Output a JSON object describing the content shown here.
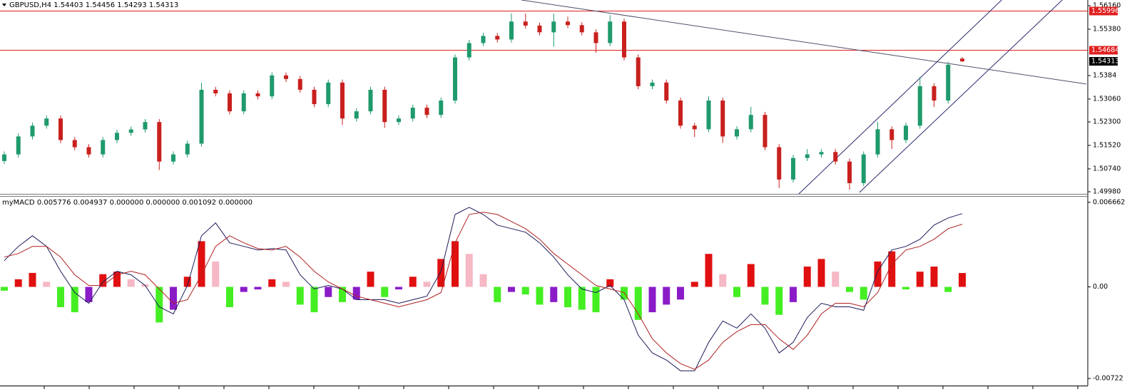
{
  "chart_data": [
    {
      "type": "candlestick",
      "header": "GBPUSD,H4  1.54403 1.54456 1.54293 1.54313",
      "open": [
        1.51,
        1.51221,
        1.51818,
        1.52175,
        1.52414,
        1.51698,
        1.5146,
        1.51221,
        1.51698,
        1.51937,
        1.5205,
        1.52295,
        1.50983,
        1.51221,
        1.51579,
        1.53368,
        1.53249,
        1.52652,
        1.53249,
        1.5315,
        1.53845,
        1.53726,
        1.53368,
        1.52891,
        1.53607,
        1.52414,
        1.52652,
        1.53368,
        1.52295,
        1.52414,
        1.52772,
        1.52533,
        1.5301,
        1.54442,
        1.54919,
        1.55157,
        1.55038,
        1.55634,
        1.555,
        1.55277,
        1.55634,
        1.55515,
        1.55277,
        1.54919,
        1.55634,
        1.54442,
        1.53487,
        1.53607,
        1.5301,
        1.52175,
        1.52056,
        1.5301,
        1.51818,
        1.52056,
        1.52533,
        1.5146,
        1.50386,
        1.51102,
        1.51221,
        1.513,
        1.50983,
        1.50267,
        1.51221,
        1.52056,
        1.51698,
        1.52175,
        1.53487,
        1.5301,
        1.54403
      ],
      "high": [
        1.51321,
        1.51918,
        1.52275,
        1.52514,
        1.52514,
        1.51798,
        1.5156,
        1.51798,
        1.52037,
        1.5215,
        1.52395,
        1.52395,
        1.51321,
        1.51679,
        1.536,
        1.53468,
        1.53349,
        1.53349,
        1.53349,
        1.5395,
        1.53945,
        1.53826,
        1.53468,
        1.53707,
        1.53707,
        1.52752,
        1.53468,
        1.53468,
        1.52514,
        1.52872,
        1.52872,
        1.5311,
        1.54542,
        1.55019,
        1.55257,
        1.55257,
        1.559,
        1.559,
        1.556,
        1.559,
        1.558,
        1.55615,
        1.55377,
        1.5585,
        1.55734,
        1.54542,
        1.53707,
        1.53707,
        1.5311,
        1.52275,
        1.5315,
        1.5311,
        1.52156,
        1.528,
        1.52633,
        1.5156,
        1.51202,
        1.514,
        1.514,
        1.514,
        1.51083,
        1.51321,
        1.523,
        1.52156,
        1.52275,
        1.538,
        1.53587,
        1.543,
        1.54456
      ],
      "low": [
        1.509,
        1.51121,
        1.51718,
        1.52075,
        1.51598,
        1.5136,
        1.51121,
        1.51121,
        1.51598,
        1.51837,
        1.5195,
        1.507,
        1.50883,
        1.51121,
        1.51479,
        1.53149,
        1.52552,
        1.52552,
        1.5305,
        1.5305,
        1.53626,
        1.53268,
        1.52791,
        1.52791,
        1.522,
        1.52314,
        1.52552,
        1.521,
        1.52195,
        1.52314,
        1.52433,
        1.52433,
        1.5291,
        1.54342,
        1.54819,
        1.54938,
        1.54938,
        1.554,
        1.55177,
        1.548,
        1.55415,
        1.55177,
        1.546,
        1.54819,
        1.54342,
        1.53387,
        1.53387,
        1.5291,
        1.52075,
        1.518,
        1.51956,
        1.516,
        1.51718,
        1.51956,
        1.5136,
        1.501,
        1.50286,
        1.51002,
        1.51121,
        1.50883,
        1.5005,
        1.50167,
        1.51121,
        1.514,
        1.51598,
        1.52075,
        1.528,
        1.5291,
        1.54293
      ],
      "close": [
        1.51221,
        1.51818,
        1.52175,
        1.52414,
        1.51698,
        1.5146,
        1.51221,
        1.51698,
        1.51937,
        1.5205,
        1.52295,
        1.50983,
        1.51221,
        1.51579,
        1.53368,
        1.53249,
        1.52652,
        1.53249,
        1.5315,
        1.53845,
        1.53726,
        1.53368,
        1.52891,
        1.53607,
        1.52414,
        1.52652,
        1.53368,
        1.52295,
        1.52414,
        1.52772,
        1.52533,
        1.5301,
        1.54442,
        1.54919,
        1.55157,
        1.55038,
        1.55634,
        1.555,
        1.55277,
        1.55634,
        1.55515,
        1.55277,
        1.54919,
        1.55634,
        1.54442,
        1.53487,
        1.53607,
        1.5301,
        1.52175,
        1.52056,
        1.5301,
        1.51818,
        1.52056,
        1.52533,
        1.5146,
        1.50386,
        1.51102,
        1.51221,
        1.513,
        1.50983,
        1.50267,
        1.51221,
        1.52056,
        1.51698,
        1.52175,
        1.53487,
        1.5301,
        1.542,
        1.54313
      ],
      "up_color": "#1f9a6c",
      "down_color": "#c8201e",
      "ylim": [
        1.4991,
        1.5635
      ],
      "yticks": [
        {
          "value": 1.5616,
          "label": "1.56160"
        },
        {
          "value": 1.5538,
          "label": "1.55380"
        },
        1.5384,
        {
          "value": 1.5306,
          "label": "1.53060"
        },
        {
          "value": 1.523,
          "label": "1.52300"
        },
        {
          "value": 1.5152,
          "label": "1.51520"
        },
        {
          "value": 1.5074,
          "label": "1.50740"
        },
        {
          "value": 1.4998,
          "label": "1.49980"
        }
      ],
      "hlines": [
        {
          "value": 1.55996,
          "color": "#e02020"
        },
        {
          "value": 1.54684,
          "color": "#e02020"
        }
      ],
      "last_price_color": "#000000",
      "trendlines": [
        {
          "x": [
            36.7,
            76.8
          ],
          "y": [
            1.5635,
            1.53559
          ],
          "color": "#50506a"
        },
        {
          "x": [
            56.4,
            70.8
          ],
          "y": [
            1.49909,
            1.5635
          ],
          "color": "#2a2a70"
        },
        {
          "x": [
            60.7,
            75.1
          ],
          "y": [
            1.49957,
            1.5635
          ],
          "color": "#2a2a70"
        }
      ]
    },
    {
      "type": "macd",
      "header": "myMACD 0.005776 0.004937 0.000000 0.000000 0.001092 0.000000",
      "histogram": [
        -0.0003,
        0.0006,
        0.0011,
        0.0004,
        -0.0016,
        -0.002,
        -0.0012,
        0.001,
        0.0012,
        0.0006,
        0.0002,
        -0.0028,
        -0.0018,
        0.0008,
        0.0036,
        0.002,
        -0.0016,
        -0.0004,
        -0.0002,
        0.0006,
        0.0004,
        -0.0014,
        -0.002,
        -0.0008,
        -0.0012,
        -0.001,
        0.0012,
        -0.0008,
        -0.0002,
        0.0008,
        0.0004,
        0.0022,
        0.0036,
        0.0026,
        0.001,
        -0.0012,
        -0.0004,
        -0.0006,
        -0.0014,
        -0.0012,
        -0.0016,
        -0.0018,
        -0.002,
        0.0006,
        -0.001,
        -0.0026,
        -0.002,
        -0.0014,
        -0.001,
        0.0004,
        0.0026,
        0.001,
        -0.0008,
        0.0018,
        -0.0014,
        -0.0022,
        -0.0012,
        0.0016,
        0.0022,
        0.0012,
        -0.0004,
        -0.001,
        0.002,
        0.0028,
        -0.0002,
        0.0012,
        0.0016,
        -0.0004,
        0.001092
      ],
      "histogram_colors": {
        "rising_positive": "#e01010",
        "falling_positive": "#f5b8c4",
        "falling_negative": "#44ee22",
        "rising_negative": "#8a1cc8"
      },
      "lines": [
        {
          "color": "#1c1c5c",
          "values": [
            0.00207,
            0.00319,
            0.00403,
            0.00319,
            0.00123,
            -0.00045,
            -0.00129,
            0.00039,
            0.00123,
            0.00095,
            0.00011,
            -0.00157,
            -0.00213,
            0.00011,
            0.00403,
            0.00504,
            0.00347,
            0.00319,
            0.00291,
            0.00302,
            0.00291,
            0.00095,
            -0.00017,
            0.00011,
            -0.00017,
            -0.00101,
            -0.00101,
            -0.00101,
            -0.00129,
            -0.00101,
            -0.00073,
            0.00123,
            0.00571,
            0.00627,
            0.00571,
            0.00487,
            0.00459,
            0.00431,
            0.00347,
            0.00235,
            0.00095,
            -0.00017,
            -0.00045,
            0.00011,
            -0.00101,
            -0.00381,
            -0.00521,
            -0.00577,
            -0.00661,
            -0.00661,
            -0.00437,
            -0.00269,
            -0.00325,
            -0.00213,
            -0.00325,
            -0.00521,
            -0.00437,
            -0.00241,
            -0.00129,
            -0.00157,
            -0.00157,
            -0.00185,
            0.00123,
            0.00291,
            0.00319,
            0.00375,
            0.00487,
            0.00543,
            0.005776
          ]
        },
        {
          "color": "#b02020",
          "values": [
            0.00235,
            0.00263,
            0.00319,
            0.00319,
            0.00235,
            0.00095,
            0.00011,
            0.00011,
            0.00095,
            0.00123,
            0.00095,
            -0.00017,
            -0.00129,
            -0.00101,
            0.00095,
            0.00319,
            0.00403,
            0.00347,
            0.00302,
            0.00291,
            0.00319,
            0.00235,
            0.00123,
            0.00039,
            -0.00017,
            -0.00073,
            -0.00101,
            -0.00129,
            -0.00157,
            -0.00129,
            -0.00101,
            -0.00045,
            0.00347,
            0.00571,
            0.00588,
            0.00571,
            0.00515,
            0.00459,
            0.00375,
            0.00263,
            0.00179,
            0.00095,
            0.00011,
            -0.00017,
            -0.00045,
            -0.00213,
            -0.00409,
            -0.00521,
            -0.00605,
            -0.0065,
            -0.00577,
            -0.00437,
            -0.00353,
            -0.00297,
            -0.00297,
            -0.00409,
            -0.00493,
            -0.00381,
            -0.00213,
            -0.00129,
            -0.00129,
            -0.00157,
            -0.00045,
            0.00179,
            0.00291,
            0.00319,
            0.00375,
            0.00459,
            0.004937
          ]
        }
      ],
      "ylim": [
        -0.00778,
        0.00705
      ],
      "yticks": [
        0.006662,
        {
          "value": 0,
          "label": "0.00"
        },
        -0.00722
      ]
    }
  ]
}
